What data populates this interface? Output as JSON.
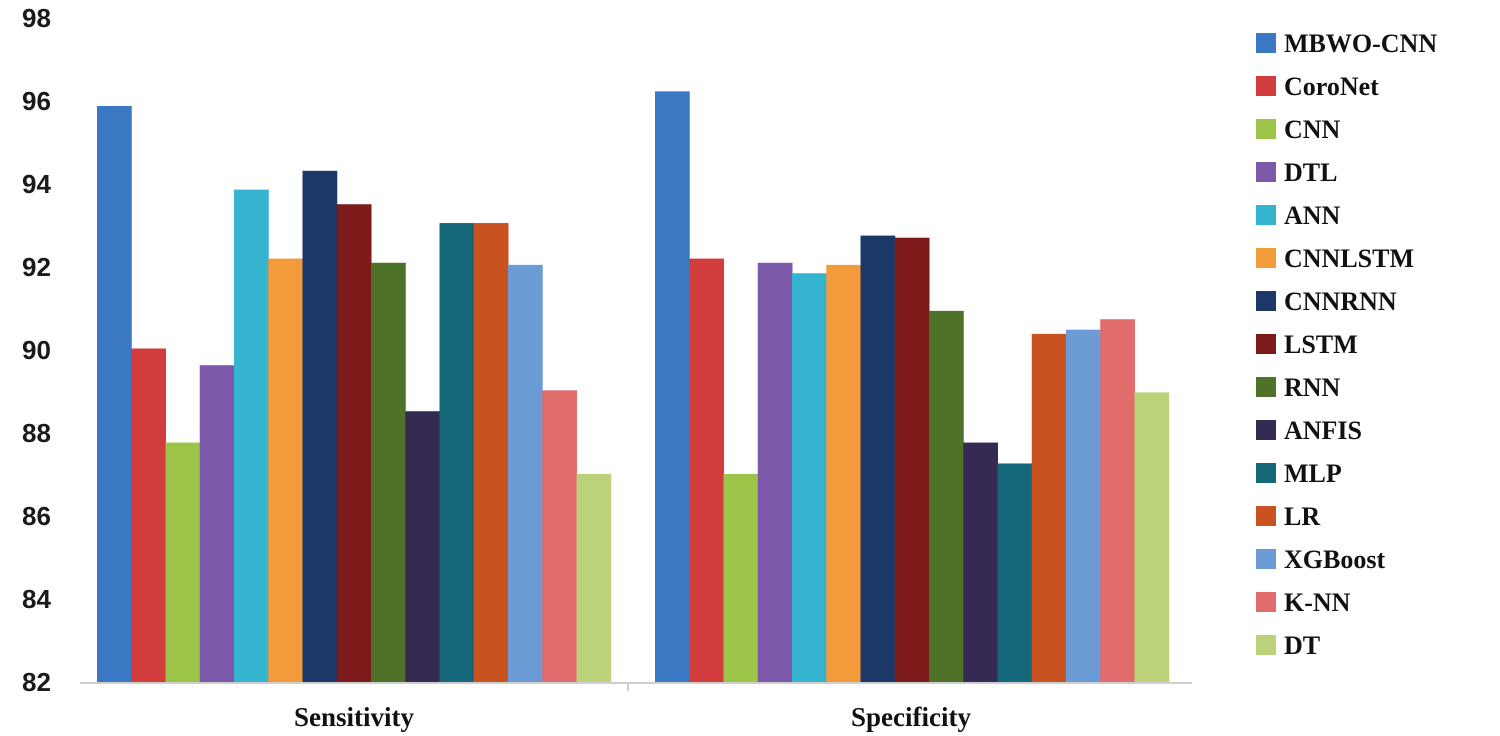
{
  "chart_data": {
    "type": "bar",
    "title": "",
    "xlabel": "",
    "ylabel": "",
    "ylim": [
      82,
      98
    ],
    "yticks": [
      82,
      84,
      86,
      88,
      90,
      92,
      94,
      96,
      98
    ],
    "grid": false,
    "legend_position": "right",
    "categories": [
      "Sensitivity",
      "Specificity"
    ],
    "series": [
      {
        "name": "MBWO-CNN",
        "color": "#3a78c4",
        "values": [
          95.8,
          96.15
        ]
      },
      {
        "name": "CoroNet",
        "color": "#d13c3c",
        "values": [
          90.0,
          92.15
        ]
      },
      {
        "name": "CNN",
        "color": "#9bc449",
        "values": [
          87.75,
          87.0
        ]
      },
      {
        "name": "DTL",
        "color": "#7c58a8",
        "values": [
          89.6,
          92.05
        ]
      },
      {
        "name": "ANN",
        "color": "#35b4cf",
        "values": [
          93.8,
          91.8
        ]
      },
      {
        "name": "CNNLSTM",
        "color": "#f39a3a",
        "values": [
          92.15,
          92.0
        ]
      },
      {
        "name": "CNNRNN",
        "color": "#1c3868",
        "values": [
          94.25,
          92.7
        ]
      },
      {
        "name": "LSTM",
        "color": "#7d1a1a",
        "values": [
          93.45,
          92.65
        ]
      },
      {
        "name": "RNN",
        "color": "#4f7229",
        "values": [
          92.05,
          90.9
        ]
      },
      {
        "name": "ANFIS",
        "color": "#352a52",
        "values": [
          88.5,
          87.75
        ]
      },
      {
        "name": "MLP",
        "color": "#15677a",
        "values": [
          93.0,
          87.25
        ]
      },
      {
        "name": "LR",
        "color": "#c85220",
        "values": [
          93.0,
          90.35
        ]
      },
      {
        "name": "XGBoost",
        "color": "#6b9bd4",
        "values": [
          92.0,
          90.45
        ]
      },
      {
        "name": "K-NN",
        "color": "#e06c6c",
        "values": [
          89.0,
          90.7
        ]
      },
      {
        "name": "DT",
        "color": "#bcd27a",
        "values": [
          87.0,
          88.95
        ]
      }
    ]
  }
}
